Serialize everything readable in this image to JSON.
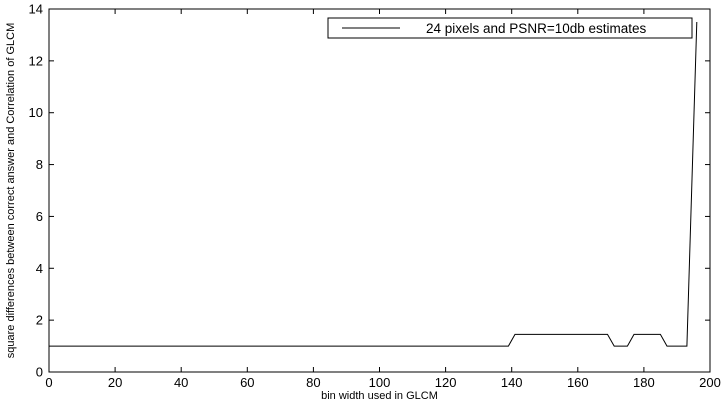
{
  "chart_data": {
    "type": "line",
    "xlabel": "bin width used in GLCM",
    "ylabel": "square differences between correct answer and Correlation of GLCM",
    "xlim": [
      0,
      200
    ],
    "ylim": [
      0,
      14
    ],
    "xticks": [
      0,
      20,
      40,
      60,
      80,
      100,
      120,
      140,
      160,
      180,
      200
    ],
    "yticks": [
      0,
      2,
      4,
      6,
      8,
      10,
      12,
      14
    ],
    "xtick_labels": [
      "0",
      "20",
      "40",
      "60",
      "80",
      "100",
      "120",
      "140",
      "160",
      "180",
      "200"
    ],
    "ytick_labels": [
      "0",
      "2",
      "4",
      "6",
      "8",
      "10",
      "12",
      "14"
    ],
    "grid": false,
    "legend_position": "top-right",
    "series": [
      {
        "name": "24 pixels and PSNR=10db estimates",
        "color": "#000000",
        "x": [
          0,
          139,
          141,
          169,
          171,
          175,
          177,
          185,
          187,
          193,
          196
        ],
        "y": [
          1,
          1,
          1.45,
          1.45,
          1,
          1,
          1.45,
          1.45,
          1,
          1,
          13.5
        ]
      }
    ]
  }
}
